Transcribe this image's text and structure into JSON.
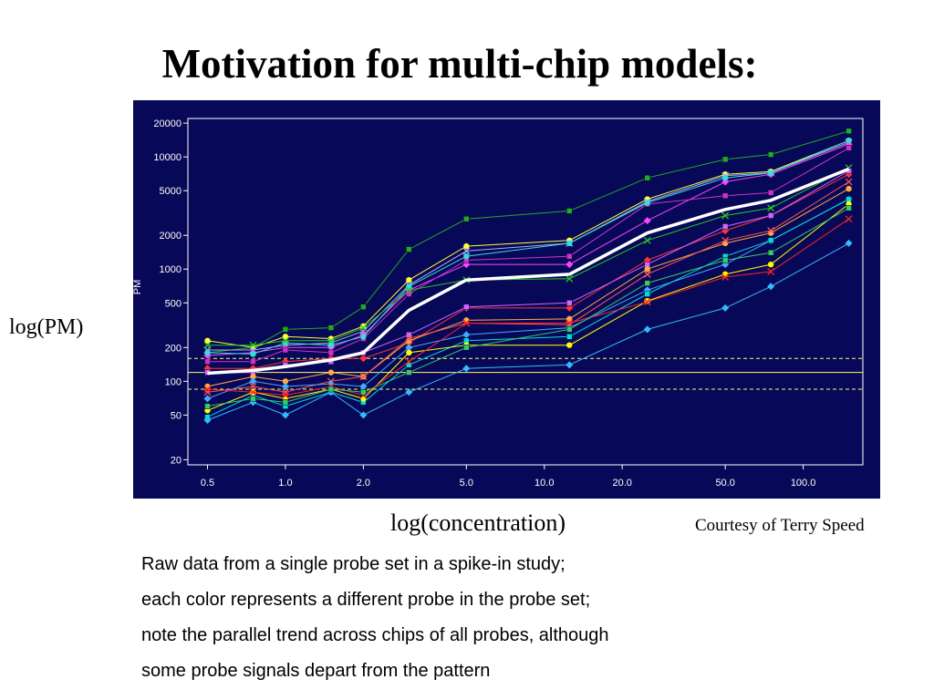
{
  "slide": {
    "title": "Motivation for multi-chip models:",
    "ylabel": "log(PM)",
    "xlabel": "log(concentration)",
    "credit": "Courtesy of Terry Speed",
    "caption_lines": [
      "Raw data from a single probe set in a spike-in study;",
      "each color represents a different probe in the probe set;",
      "note the parallel trend across chips of all probes, although",
      "some probe signals depart from the pattern"
    ]
  },
  "chart_data": {
    "type": "line",
    "xscale": "log",
    "yscale": "log",
    "xlim": [
      0.42,
      170
    ],
    "ylim": [
      18,
      22000
    ],
    "plot_ylabel": "PM",
    "x": [
      0.5,
      0.75,
      1.0,
      1.5,
      2.0,
      3.0,
      5.0,
      12.5,
      25.0,
      50.0,
      75.0,
      150.0
    ],
    "x_ticks": [
      0.5,
      1.0,
      2.0,
      5.0,
      10.0,
      20.0,
      50.0,
      100.0
    ],
    "x_tick_labels": [
      "0.5",
      "1.0",
      "2.0",
      "5.0",
      "10.0",
      "20.0",
      "50.0",
      "100.0"
    ],
    "y_ticks": [
      20,
      50,
      100,
      200,
      500,
      1000,
      2000,
      5000,
      10000,
      20000
    ],
    "y_tick_labels": [
      "20",
      "50",
      "100",
      "200",
      "500",
      "1000",
      "2000",
      "5000",
      "10000",
      "20000"
    ],
    "grid": false,
    "reference_lines": [
      {
        "y": 160,
        "style": "dashed",
        "color": "#ffff66"
      },
      {
        "y": 120,
        "style": "solid",
        "color": "#ffff66"
      },
      {
        "y": 85,
        "style": "dashed",
        "color": "#ffff66"
      }
    ],
    "median_color": "#ffffff",
    "median": [
      118,
      125,
      135,
      155,
      180,
      430,
      800,
      900,
      2100,
      3400,
      4100,
      7800
    ],
    "series": [
      {
        "color": "#22aa22",
        "values": [
          180,
          200,
          290,
          300,
          460,
          1500,
          2800,
          3300,
          6500,
          9500,
          10500,
          17000
        ]
      },
      {
        "color": "#ffff33",
        "values": [
          230,
          200,
          250,
          240,
          310,
          800,
          1600,
          1800,
          4200,
          7000,
          7400,
          14000
        ]
      },
      {
        "color": "#aaaaff",
        "values": [
          190,
          190,
          210,
          220,
          280,
          720,
          1450,
          1700,
          4000,
          6800,
          7200,
          13500
        ]
      },
      {
        "color": "#ff44ff",
        "values": [
          170,
          180,
          200,
          200,
          260,
          650,
          1100,
          1100,
          2700,
          6000,
          7000,
          13000
        ]
      },
      {
        "color": "#cc33cc",
        "values": [
          150,
          150,
          190,
          180,
          240,
          600,
          1200,
          1300,
          3800,
          4500,
          4800,
          12000
        ]
      },
      {
        "color": "#33dddd",
        "values": [
          180,
          175,
          220,
          210,
          250,
          700,
          1300,
          1700,
          3900,
          6500,
          7200,
          14000
        ]
      },
      {
        "color": "#22cc22",
        "values": [
          210,
          210,
          230,
          230,
          300,
          650,
          800,
          820,
          1800,
          3000,
          3500,
          8000
        ]
      },
      {
        "color": "#ff3333",
        "values": [
          130,
          130,
          150,
          160,
          160,
          220,
          450,
          450,
          1200,
          2200,
          3000,
          7000
        ]
      },
      {
        "color": "#cc66ff",
        "values": [
          120,
          120,
          140,
          150,
          180,
          260,
          460,
          500,
          1100,
          2400,
          3000,
          7500
        ]
      },
      {
        "color": "#ffaa44",
        "values": [
          90,
          110,
          100,
          120,
          110,
          230,
          350,
          360,
          1000,
          1700,
          2100,
          5200
        ]
      },
      {
        "color": "#ff5555",
        "values": [
          80,
          90,
          80,
          100,
          110,
          240,
          330,
          320,
          900,
          1800,
          2200,
          6000
        ]
      },
      {
        "color": "#44aaff",
        "values": [
          70,
          100,
          90,
          95,
          90,
          200,
          260,
          300,
          650,
          1100,
          1800,
          4200
        ]
      },
      {
        "color": "#00dddd",
        "values": [
          48,
          75,
          60,
          80,
          65,
          140,
          230,
          250,
          600,
          1300,
          1800,
          4200
        ]
      },
      {
        "color": "#ffff00",
        "values": [
          55,
          80,
          70,
          85,
          70,
          180,
          210,
          210,
          520,
          900,
          1100,
          3800
        ]
      },
      {
        "color": "#ff2222",
        "values": [
          85,
          80,
          75,
          90,
          75,
          150,
          330,
          330,
          510,
          850,
          950,
          2800
        ]
      },
      {
        "color": "#33bbff",
        "values": [
          45,
          65,
          50,
          80,
          50,
          80,
          130,
          140,
          290,
          450,
          700,
          1700
        ]
      },
      {
        "color": "#33cc66",
        "values": [
          60,
          70,
          65,
          85,
          80,
          120,
          200,
          290,
          750,
          1200,
          1400,
          3500
        ]
      }
    ]
  }
}
